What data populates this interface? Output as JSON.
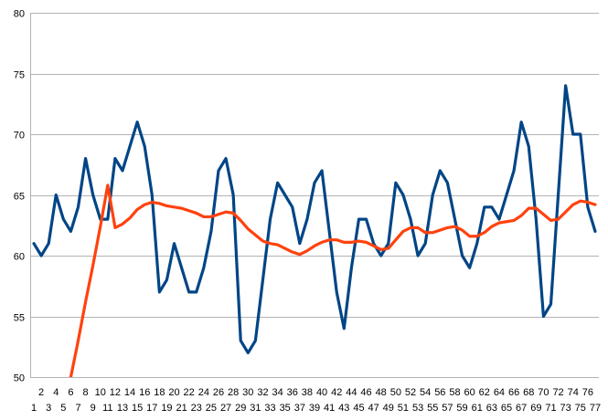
{
  "chart_data": {
    "type": "line",
    "title": "",
    "xlabel": "",
    "ylabel": "",
    "ylim": [
      50,
      80
    ],
    "yticks": [
      50,
      55,
      60,
      65,
      70,
      75,
      80
    ],
    "grid": "horizontal",
    "legend": "none",
    "x": [
      1,
      2,
      3,
      4,
      5,
      6,
      7,
      8,
      9,
      10,
      11,
      12,
      13,
      14,
      15,
      16,
      17,
      18,
      19,
      20,
      21,
      22,
      23,
      24,
      25,
      26,
      27,
      28,
      29,
      30,
      31,
      32,
      33,
      34,
      35,
      36,
      37,
      38,
      39,
      40,
      41,
      42,
      43,
      44,
      45,
      46,
      47,
      48,
      49,
      50,
      51,
      52,
      53,
      54,
      55,
      56,
      57,
      58,
      59,
      60,
      61,
      62,
      63,
      64,
      65,
      66,
      67,
      68,
      69,
      70,
      71,
      72,
      73,
      74,
      75,
      76,
      77
    ],
    "series": [
      {
        "color": "#004586",
        "values": [
          61,
          60,
          61,
          65,
          63,
          62,
          64,
          68,
          65,
          63,
          63,
          68,
          67,
          69,
          71,
          69,
          65,
          57,
          58,
          61,
          59,
          57,
          57,
          59,
          62,
          67,
          68,
          65,
          53,
          52,
          53,
          58,
          63,
          66,
          65,
          64,
          61,
          63,
          66,
          67,
          62,
          57,
          54,
          59,
          63,
          63,
          61,
          60,
          61,
          66,
          65,
          63,
          60,
          61,
          65,
          67,
          66,
          63,
          60,
          59,
          61,
          64,
          64,
          63,
          65,
          67,
          71,
          69,
          63,
          55,
          56,
          65,
          74,
          70,
          70,
          64,
          62
        ]
      },
      {
        "color": "#ff420e",
        "values": [
          null,
          null,
          null,
          null,
          null,
          50,
          53,
          56.2,
          59.2,
          62.4,
          65.8,
          62.3,
          62.6,
          63.1,
          63.8,
          64.2,
          64.4,
          64.3,
          64.1,
          64.0,
          63.9,
          63.7,
          63.5,
          63.2,
          63.2,
          63.4,
          63.6,
          63.5,
          62.9,
          62.2,
          61.7,
          61.2,
          61.0,
          60.9,
          60.6,
          60.3,
          60.1,
          60.4,
          60.8,
          61.1,
          61.3,
          61.3,
          61.1,
          61.1,
          61.2,
          61.1,
          60.8,
          60.5,
          60.6,
          61.3,
          62.0,
          62.3,
          62.3,
          61.9,
          61.9,
          62.1,
          62.3,
          62.4,
          62.1,
          61.6,
          61.6,
          61.9,
          62.4,
          62.7,
          62.8,
          62.9,
          63.3,
          63.9,
          63.9,
          63.4,
          62.9,
          63.0,
          63.6,
          64.2,
          64.5,
          64.4,
          64.2
        ]
      }
    ]
  }
}
